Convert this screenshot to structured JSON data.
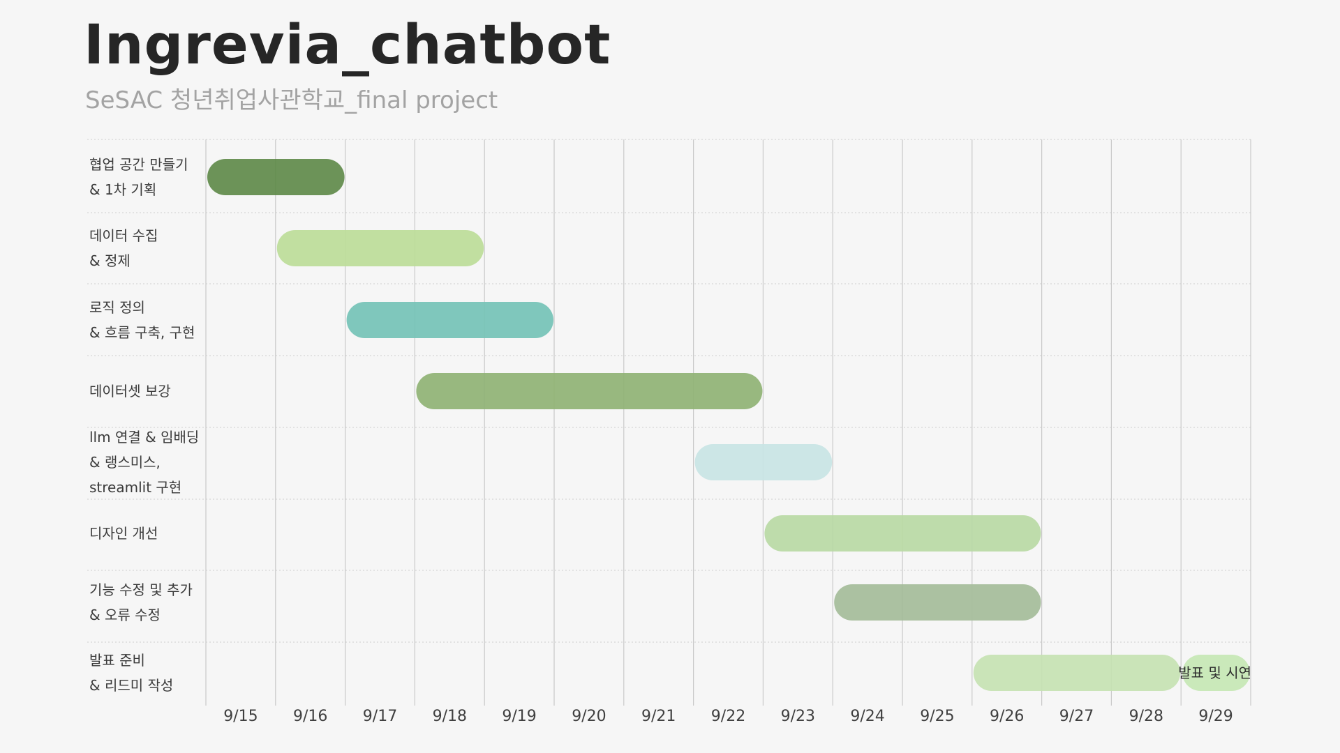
{
  "header": {
    "title": "Ingrevia_chatbot",
    "subtitle": "SeSAC 청년취업사관학교_final project"
  },
  "chart_data": {
    "type": "gantt",
    "x_ticks": [
      "9/15",
      "9/16",
      "9/17",
      "9/18",
      "9/19",
      "9/20",
      "9/21",
      "9/22",
      "9/23",
      "9/24",
      "9/25",
      "9/26",
      "9/27",
      "9/28",
      "9/29"
    ],
    "tasks": [
      {
        "label": [
          "협업 공간 만들기",
          "& 1차 기획"
        ],
        "start": "9/15",
        "end": "9/16",
        "color": "#5f8a4a"
      },
      {
        "label": [
          "데이터 수집",
          "& 정제"
        ],
        "start": "9/16",
        "end": "9/18",
        "color": "#bcdc98"
      },
      {
        "label": [
          "로직 정의",
          "& 흐름 구축, 구현"
        ],
        "start": "9/17",
        "end": "9/19",
        "color": "#74c2b6"
      },
      {
        "label": [
          "데이터셋 보강"
        ],
        "start": "9/18",
        "end": "9/22",
        "color": "#8fb274"
      },
      {
        "label": [
          "llm 연결 & 임배딩",
          "& 랭스미스,",
          "streamlit 구현"
        ],
        "start": "9/22",
        "end": "9/23",
        "color": "#c8e4e4"
      },
      {
        "label": [
          "디자인 개선"
        ],
        "start": "9/23",
        "end": "9/26",
        "color": "#b8d9a4"
      },
      {
        "label": [
          "기능 수정 및 추가",
          "& 오류 수정"
        ],
        "start": "9/24",
        "end": "9/26",
        "color": "#a4bc99"
      },
      {
        "label": [
          "발표 준비",
          "& 리드미 작성"
        ],
        "start": "9/26",
        "end": "9/28",
        "color": "#c6e2b2"
      },
      {
        "label": [
          "발표 및 시연"
        ],
        "start": "9/29",
        "end": "9/29",
        "color": "#c6e7b4",
        "bar_text": "발표 및 시연"
      }
    ],
    "grid": true
  }
}
